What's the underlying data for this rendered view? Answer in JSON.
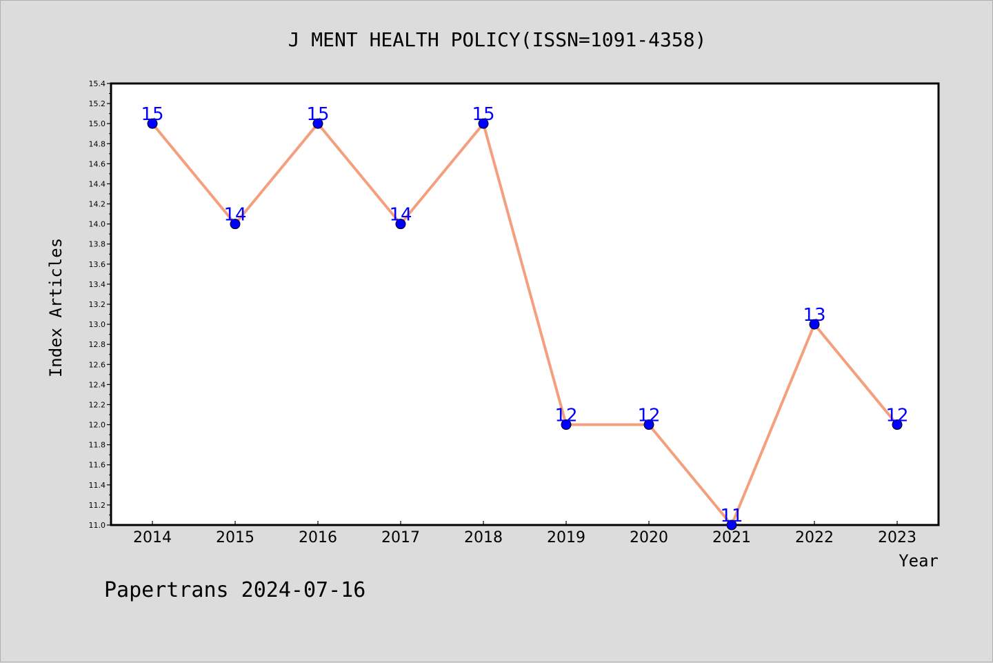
{
  "footer": "Papertrans 2024-07-16",
  "colors": {
    "background": "#dcdcdc",
    "plot_background": "#ffffff",
    "line": "#f4a07e",
    "marker": "#0000ff",
    "data_label": "#0000ff"
  },
  "chart_data": {
    "type": "line",
    "title": "J MENT HEALTH POLICY(ISSN=1091-4358)",
    "xlabel": "Year",
    "ylabel": "Index Articles",
    "categories": [
      "2014",
      "2015",
      "2016",
      "2017",
      "2018",
      "2019",
      "2020",
      "2021",
      "2022",
      "2023"
    ],
    "series": [
      {
        "values": [
          15,
          14,
          15,
          14,
          15,
          12,
          12,
          11,
          13,
          12
        ]
      }
    ],
    "data_labels": [
      "15",
      "14",
      "15",
      "14",
      "15",
      "12",
      "12",
      "11",
      "13",
      "12"
    ],
    "ylim": [
      11.0,
      15.4
    ],
    "yticks": [
      "11.0",
      "11.2",
      "11.4",
      "11.6",
      "11.8",
      "12.0",
      "12.2",
      "12.4",
      "12.6",
      "12.8",
      "13.0",
      "13.2",
      "13.4",
      "13.6",
      "13.8",
      "14.0",
      "14.2",
      "14.4",
      "14.6",
      "14.8",
      "15.0",
      "15.2",
      "15.4"
    ],
    "grid": false,
    "legend": "none"
  }
}
